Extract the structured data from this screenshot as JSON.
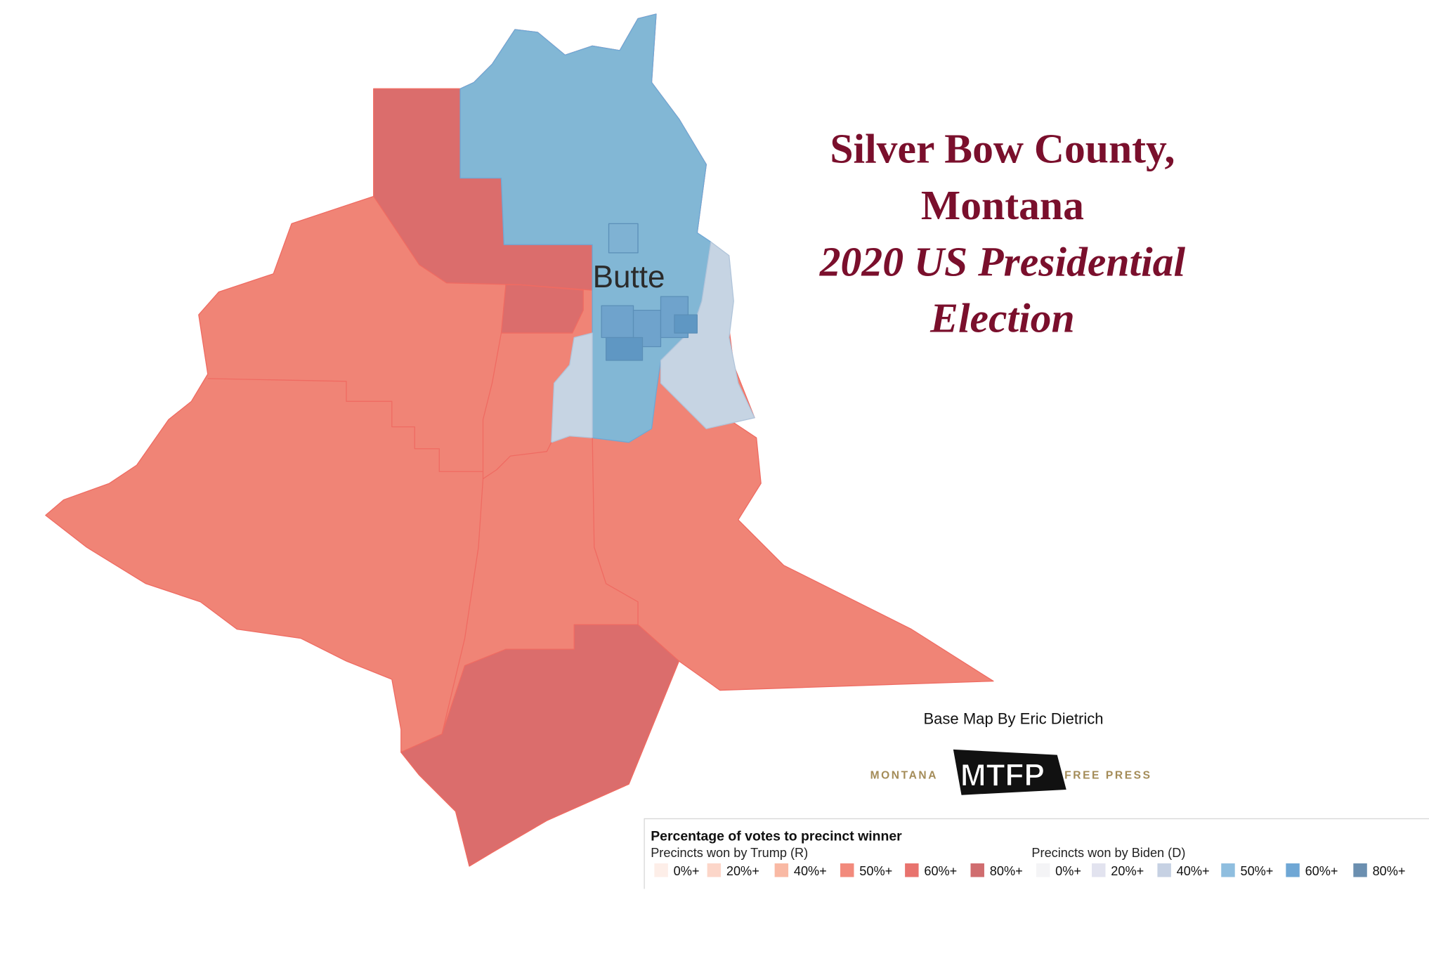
{
  "title": {
    "lines": [
      "Silver Bow County,",
      "Montana"
    ],
    "subtitle_lines": [
      "2020 US Presidential",
      "Election"
    ]
  },
  "map": {
    "place_label": "Butte"
  },
  "credit": "Base Map By Eric Dietrich",
  "logo": {
    "left": "MONTANA",
    "mark": "MTFP",
    "right": "FREE PRESS"
  },
  "legend": {
    "title": "Percentage of votes to precinct winner",
    "groups": [
      {
        "title": "Precincts won by Trump (R)",
        "items": [
          {
            "label": "0%+",
            "color": "#fdeee8"
          },
          {
            "label": "20%+",
            "color": "#fcd6c9"
          },
          {
            "label": "40%+",
            "color": "#f9b9a4"
          },
          {
            "label": "50%+",
            "color": "#f28a7c"
          },
          {
            "label": "60%+",
            "color": "#e8736e"
          },
          {
            "label": "80%+",
            "color": "#d06d6f"
          }
        ]
      },
      {
        "title": "Precincts won by Biden (D)",
        "items": [
          {
            "label": "0%+",
            "color": "#f4f4f6"
          },
          {
            "label": "20%+",
            "color": "#e2e3ef"
          },
          {
            "label": "40%+",
            "color": "#c6d1e3"
          },
          {
            "label": "50%+",
            "color": "#8fbedf"
          },
          {
            "label": "60%+",
            "color": "#6fa7d5"
          },
          {
            "label": "80%+",
            "color": "#6b8fb0"
          }
        ]
      }
    ]
  }
}
